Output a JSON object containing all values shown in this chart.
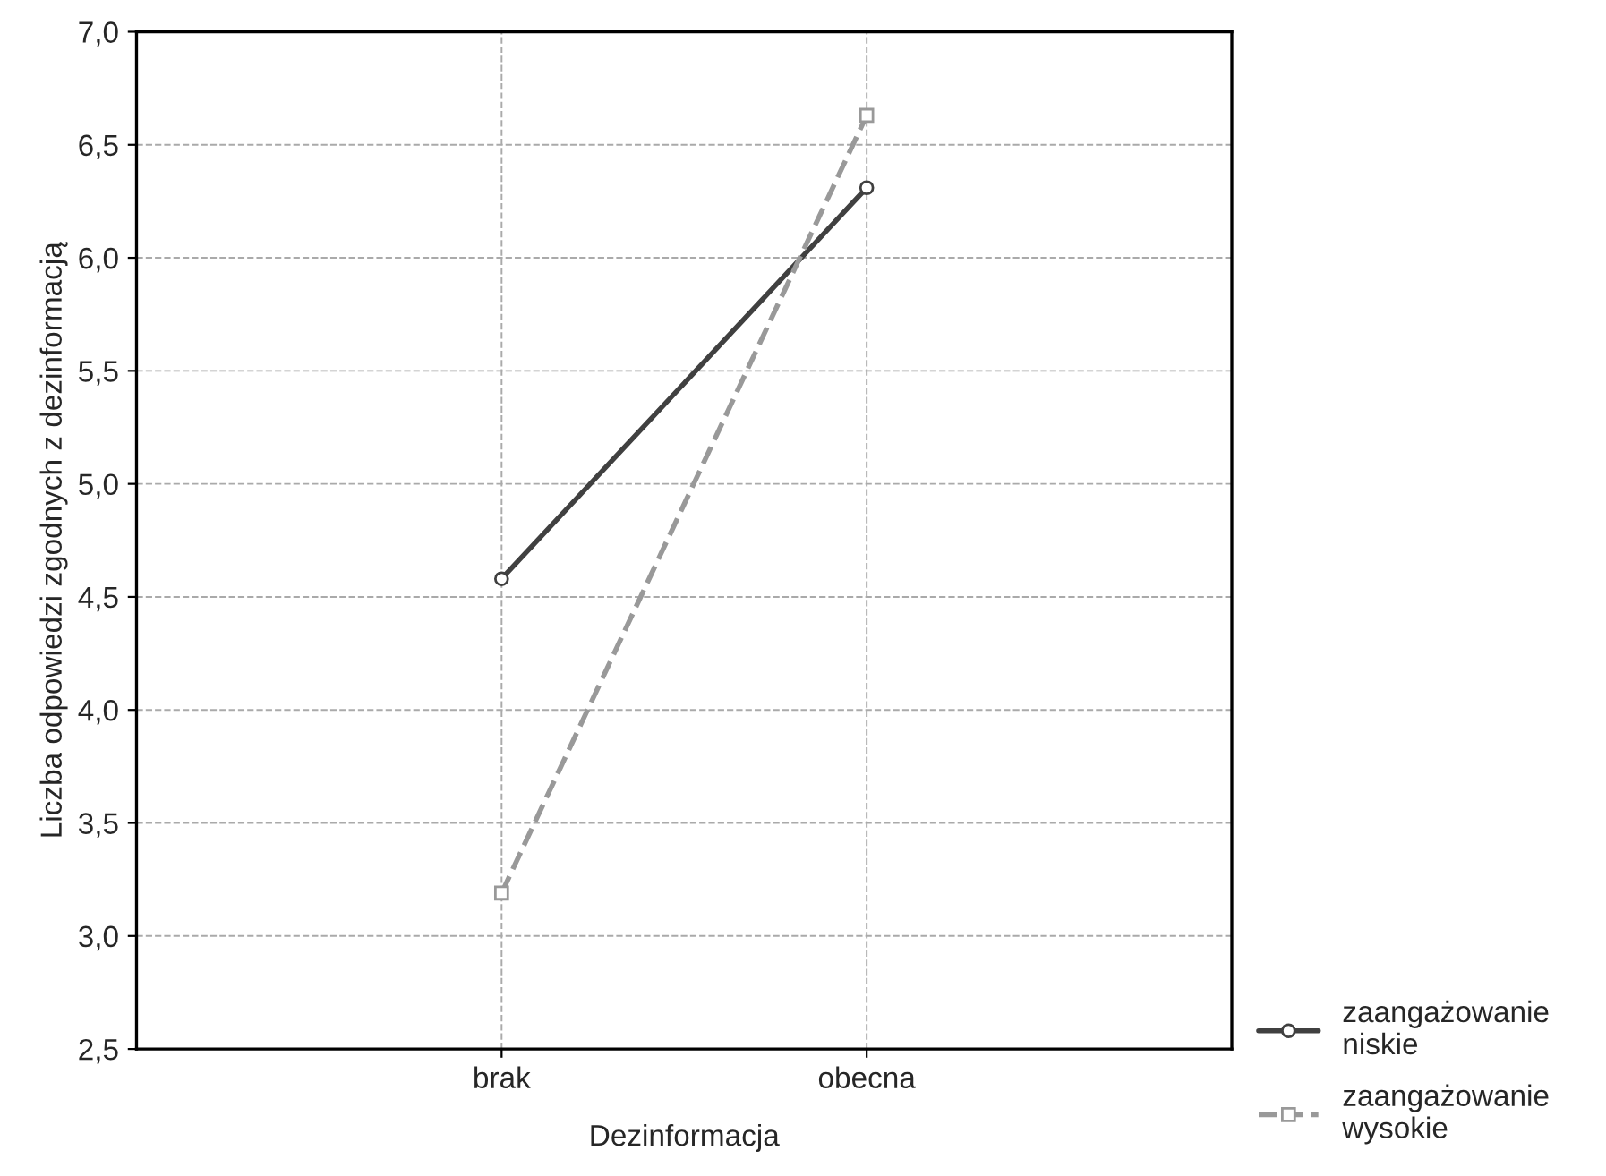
{
  "chart_data": {
    "type": "line",
    "xlabel": "Dezinformacja",
    "ylabel": "Liczba odpowiedzi zgodnych z dezinformacją",
    "categories": [
      "brak",
      "obecna"
    ],
    "series": [
      {
        "name": "zaangażowanie niskie",
        "color": "#404040",
        "values": [
          4.58,
          6.31
        ],
        "marker": "circle",
        "line_style": "solid"
      },
      {
        "name": "zaangażowanie wysokie",
        "color": "#999999",
        "values": [
          3.19,
          6.63
        ],
        "marker": "square",
        "line_style": "dashed"
      }
    ],
    "ylim": [
      2.5,
      7.0
    ],
    "yticks": [
      {
        "value": 2.5,
        "label": "2,5"
      },
      {
        "value": 3.0,
        "label": "3,0"
      },
      {
        "value": 3.5,
        "label": "3,5"
      },
      {
        "value": 4.0,
        "label": "4,0"
      },
      {
        "value": 4.5,
        "label": "4,5"
      },
      {
        "value": 5.0,
        "label": "5,0"
      },
      {
        "value": 5.5,
        "label": "5,5"
      },
      {
        "value": 6.0,
        "label": "6,0"
      },
      {
        "value": 6.5,
        "label": "6,5"
      },
      {
        "value": 7.0,
        "label": "7,0"
      }
    ],
    "grid": true,
    "legend": "bottom right"
  }
}
